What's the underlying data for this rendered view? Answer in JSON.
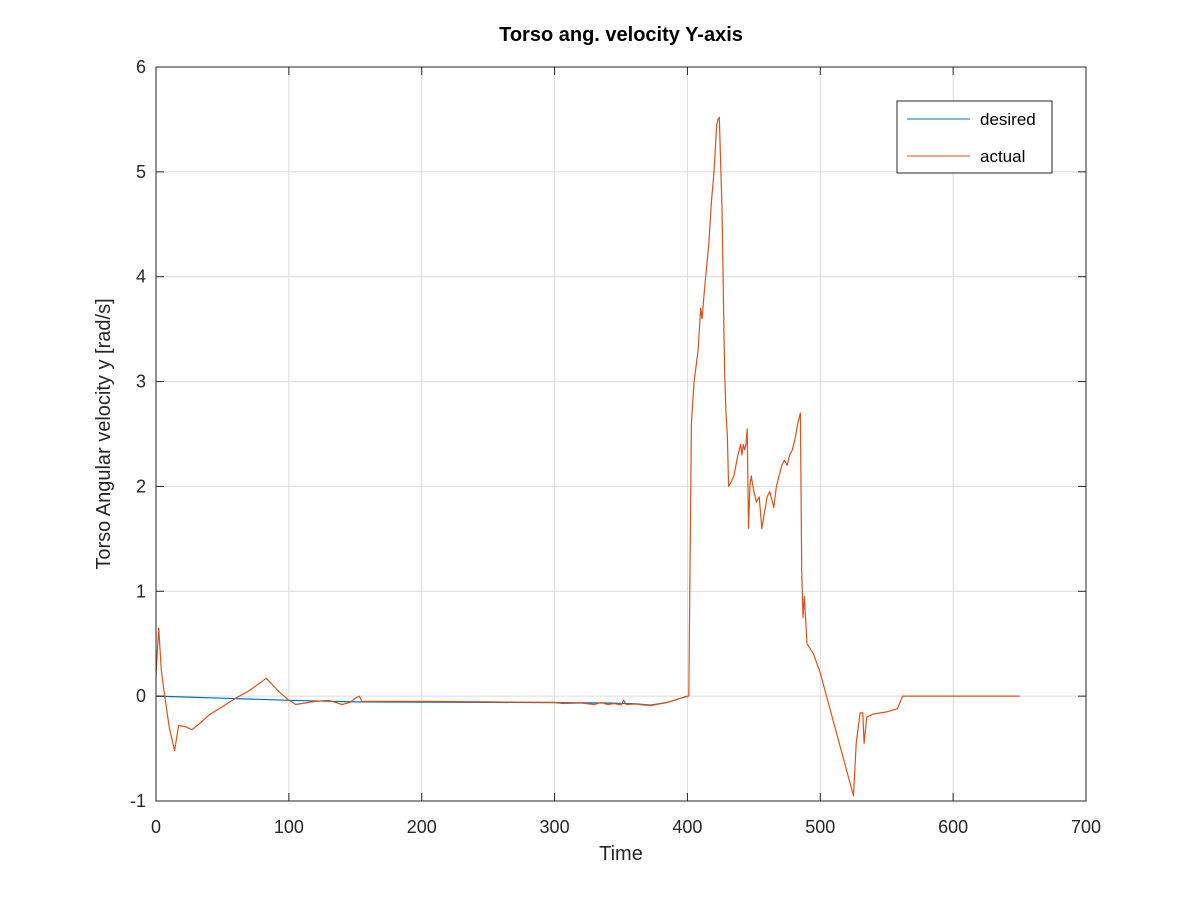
{
  "chart_data": {
    "type": "line",
    "title": "Torso ang. velocity Y-axis",
    "xlabel": "Time",
    "ylabel": "Torso Angular velocity y [rad/s]",
    "xlim": [
      0,
      700
    ],
    "ylim": [
      -1,
      6
    ],
    "xticks": [
      0,
      100,
      200,
      300,
      400,
      500,
      600,
      700
    ],
    "yticks": [
      -1,
      0,
      1,
      2,
      3,
      4,
      5,
      6
    ],
    "grid": true,
    "legend_position": "top-right",
    "series": [
      {
        "name": "desired",
        "color": "#0072BD",
        "x": [
          0,
          50,
          100,
          150,
          200,
          250,
          300,
          340,
          360,
          372,
          385,
          395,
          400
        ],
        "y": [
          0,
          -0.02,
          -0.04,
          -0.055,
          -0.058,
          -0.06,
          -0.062,
          -0.065,
          -0.072,
          -0.085,
          -0.06,
          -0.02,
          0
        ]
      },
      {
        "name": "actual",
        "color": "#D95319",
        "x": [
          0,
          2,
          4,
          6,
          10,
          14,
          17,
          22,
          27,
          32,
          40,
          50,
          60,
          70,
          83,
          92,
          100,
          103,
          105,
          110,
          120,
          130,
          140,
          146,
          150,
          153,
          155,
          200,
          250,
          300,
          306,
          320,
          330,
          335,
          340,
          345,
          350,
          352,
          354,
          360,
          372,
          385,
          395,
          401,
          403,
          405,
          408,
          410,
          411,
          413,
          416,
          418,
          420,
          422,
          423,
          424,
          426,
          428,
          429,
          430,
          431,
          432,
          435,
          438,
          440,
          441,
          442,
          443,
          444,
          445,
          446,
          447,
          448,
          450,
          452,
          454,
          456,
          458,
          460,
          462,
          464,
          465,
          467,
          469,
          471,
          473,
          475,
          477,
          479,
          481,
          483,
          485,
          486,
          487,
          488,
          490,
          495,
          500,
          525,
          527,
          530,
          532,
          533,
          535,
          540,
          550,
          558,
          562,
          570,
          600,
          650
        ],
        "y": [
          0.2,
          0.65,
          0.25,
          0.05,
          -0.3,
          -0.52,
          -0.28,
          -0.29,
          -0.32,
          -0.27,
          -0.18,
          -0.1,
          -0.02,
          0.05,
          0.17,
          0.05,
          -0.04,
          -0.06,
          -0.08,
          -0.07,
          -0.05,
          -0.04,
          -0.08,
          -0.06,
          -0.02,
          0.0,
          -0.05,
          -0.05,
          -0.055,
          -0.06,
          -0.07,
          -0.065,
          -0.08,
          -0.06,
          -0.08,
          -0.07,
          -0.085,
          -0.04,
          -0.08,
          -0.075,
          -0.09,
          -0.06,
          -0.02,
          0.0,
          2.6,
          3.0,
          3.3,
          3.7,
          3.6,
          3.9,
          4.3,
          4.7,
          5.0,
          5.45,
          5.5,
          5.52,
          4.65,
          3.1,
          2.7,
          2.5,
          2.0,
          2.02,
          2.1,
          2.3,
          2.4,
          2.3,
          2.4,
          2.35,
          2.4,
          2.55,
          1.6,
          2.0,
          2.1,
          1.95,
          1.85,
          1.9,
          1.6,
          1.75,
          1.9,
          1.95,
          1.85,
          1.8,
          2.0,
          2.1,
          2.2,
          2.25,
          2.2,
          2.3,
          2.35,
          2.45,
          2.6,
          2.7,
          1.2,
          0.75,
          0.95,
          0.5,
          0.4,
          0.22,
          -0.95,
          -0.45,
          -0.16,
          -0.16,
          -0.45,
          -0.2,
          -0.17,
          -0.15,
          -0.12,
          0.0,
          0.0,
          0.0,
          0.0
        ]
      }
    ]
  }
}
